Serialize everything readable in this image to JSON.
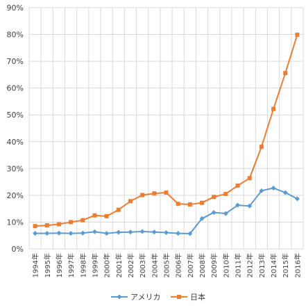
{
  "chart_data": {
    "type": "line",
    "title": "",
    "xlabel": "",
    "ylabel": "",
    "ylim": [
      0,
      90
    ],
    "y_tick_labels": [
      "0%",
      "10%",
      "20%",
      "30%",
      "40%",
      "50%",
      "60%",
      "70%",
      "80%",
      "90%"
    ],
    "y_ticks": [
      0,
      10,
      20,
      30,
      40,
      50,
      60,
      70,
      80,
      90
    ],
    "grid": "vertical and horizontal",
    "legend_position": "bottom",
    "categories": [
      "1994年",
      "1995年",
      "1996年",
      "1997年",
      "1998年",
      "1999年",
      "2000年",
      "2001年",
      "2002年",
      "2003年",
      "2004年",
      "2005年",
      "2006年",
      "2007年",
      "2008年",
      "2009年",
      "2010年",
      "2011年",
      "2012年",
      "2013年",
      "2014年",
      "2015年",
      "2016年"
    ],
    "series": [
      {
        "name": "アメリカ",
        "color": "#5B9BD5",
        "marker": "diamond",
        "values": [
          5.8,
          5.8,
          5.9,
          5.8,
          5.9,
          6.4,
          5.8,
          6.2,
          6.3,
          6.5,
          6.3,
          6.1,
          5.8,
          5.7,
          11.3,
          13.6,
          13.2,
          16.3,
          16.0,
          21.7,
          22.7,
          21.0,
          18.7
        ]
      },
      {
        "name": "日本",
        "color": "#ED7D31",
        "marker": "square",
        "values": [
          8.5,
          8.8,
          9.2,
          10.0,
          10.7,
          12.5,
          12.2,
          14.6,
          17.8,
          20.1,
          20.7,
          21.0,
          16.8,
          16.6,
          17.2,
          19.4,
          20.5,
          23.6,
          26.4,
          38.1,
          52.2,
          65.6,
          79.9
        ]
      }
    ]
  }
}
